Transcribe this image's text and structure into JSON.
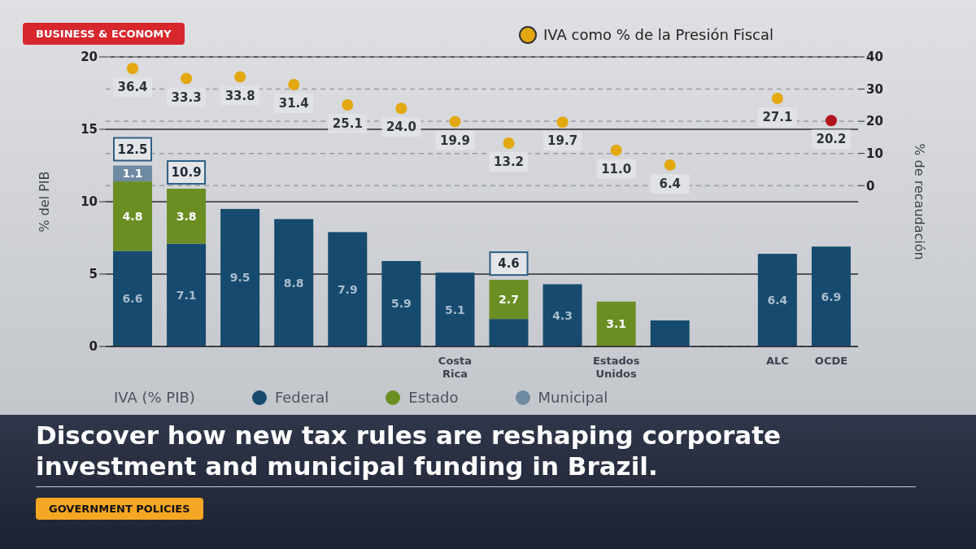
{
  "chart_data": {
    "type": "bar",
    "title": "Discover how new tax rules are reshaping corporate investment and municipal funding in Brazil.",
    "ylabel": "% del PIB",
    "y2label": "% de recaudación",
    "legend_title": "IVA (% PIB)",
    "annotations": [
      "BUSINESS & ECONOMY",
      "GOVERNMENT POLICIES"
    ],
    "categories": [
      null,
      null,
      null,
      null,
      null,
      null,
      "Costa Rica",
      null,
      null,
      "Estados Unidos",
      null,
      null,
      "ALC",
      "OCDE"
    ],
    "stacked": true,
    "series": [
      {
        "name": "Federal",
        "color": "#164a6e",
        "values": [
          6.6,
          7.1,
          9.5,
          8.8,
          7.9,
          5.9,
          5.1,
          1.9,
          4.3,
          null,
          1.8,
          null,
          6.4,
          6.9
        ],
        "value_labels": [
          "6.6",
          "7.1",
          "9.5",
          "8.8",
          "7.9",
          "5.9",
          "5.1",
          null,
          "4.3",
          null,
          null,
          null,
          "6.4",
          "6.9"
        ]
      },
      {
        "name": "Estado",
        "color": "#6b8e23",
        "values": [
          4.8,
          3.8,
          null,
          null,
          null,
          null,
          null,
          2.7,
          null,
          3.1,
          null,
          null,
          null,
          null
        ],
        "value_labels": [
          "4.8",
          "3.8",
          null,
          null,
          null,
          null,
          null,
          "2.7",
          null,
          "3.1",
          null,
          null,
          null,
          null
        ]
      },
      {
        "name": "Municipal",
        "color": "#6f8ba1",
        "values": [
          1.1,
          null,
          null,
          null,
          null,
          null,
          null,
          null,
          null,
          null,
          null,
          null,
          null,
          null
        ],
        "value_labels": [
          "1.1",
          null,
          null,
          null,
          null,
          null,
          null,
          null,
          null,
          null,
          null,
          null,
          null,
          null
        ]
      },
      {
        "name": "IVA como % de la Presión Fiscal",
        "type": "scatter",
        "axis": "y2",
        "color": "#e3a810",
        "colors": [
          "#e3a810",
          "#e3a810",
          "#e3a810",
          "#e3a810",
          "#e3a810",
          "#e3a810",
          "#e3a810",
          "#e3a810",
          "#e3a810",
          "#e3a810",
          "#e3a810",
          null,
          "#e3a810",
          "#b3151d"
        ],
        "values": [
          36.4,
          33.3,
          33.8,
          31.4,
          25.1,
          24.0,
          19.9,
          13.2,
          19.7,
          11.0,
          6.4,
          null,
          27.1,
          20.2
        ],
        "value_labels": [
          "36.4",
          "33.3",
          "33.8",
          "31.4",
          "25.1",
          "24.0",
          "19.9",
          "13.2",
          "19.7",
          "11.0",
          "6.4",
          null,
          "27.1",
          "20.2"
        ]
      }
    ],
    "totals": [
      "12.5",
      "10.9",
      null,
      null,
      null,
      null,
      null,
      "4.6",
      null,
      null,
      null,
      null,
      null,
      null
    ],
    "ylim": [
      0,
      20
    ],
    "yticks": [
      0,
      5,
      10,
      15,
      20
    ],
    "y2lim": [
      -50,
      40
    ],
    "y2ticks": [
      0,
      10,
      20,
      30,
      40
    ],
    "grid": true,
    "marker": "circle",
    "legend": "bottom"
  }
}
